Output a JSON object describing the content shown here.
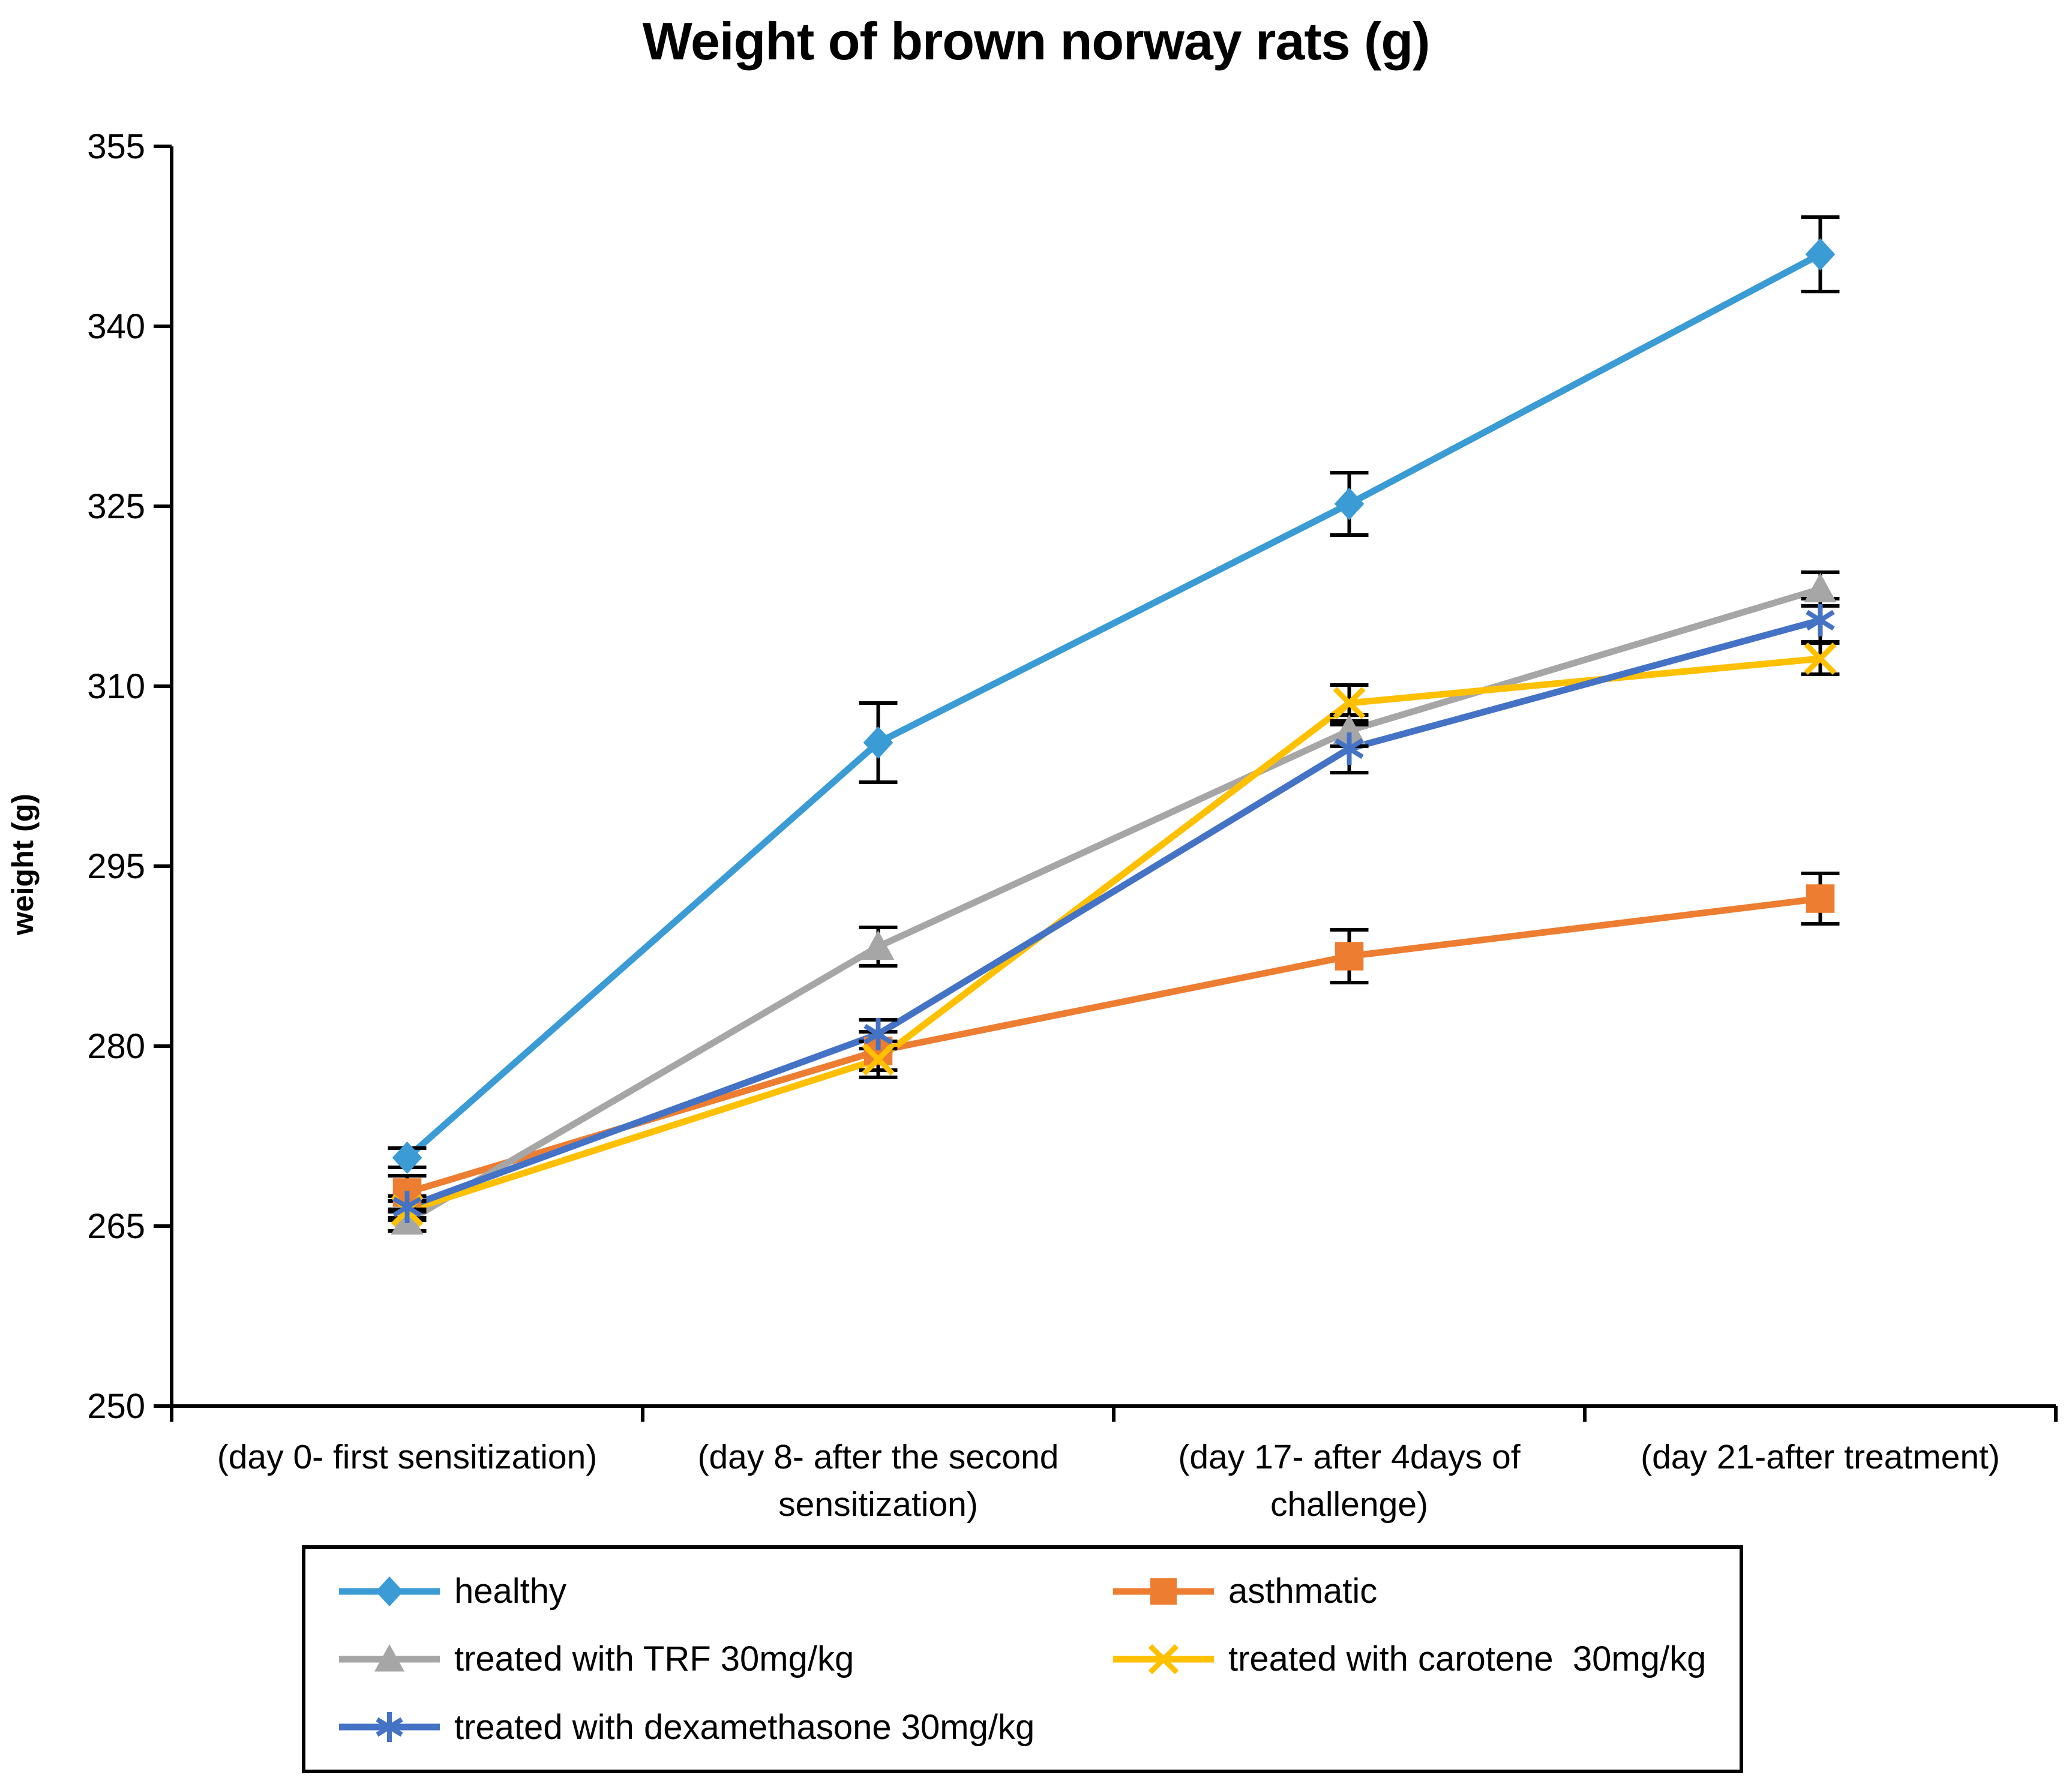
{
  "chart_data": {
    "type": "line",
    "title": "Weight of brown norway rats (g)",
    "ylabel": "weight (g)",
    "xlabel": "",
    "ylim": [
      250,
      355
    ],
    "yticks": [
      250,
      265,
      280,
      295,
      310,
      325,
      340,
      355
    ],
    "grid": false,
    "legend_position": "bottom",
    "error_bar_color": "#000000",
    "axis_color": "#000000",
    "categories": [
      "(day 0- first sensitization)",
      "(day 8- after the second sensitization)",
      "(day 17- after 4days of challenge)",
      "(day 21-after treatment)"
    ],
    "series": [
      {
        "name": "healthy",
        "color": "#3A9BD5",
        "marker": "diamond",
        "values": [
          270.7,
          305.3,
          325.2,
          346.0
        ],
        "errors": [
          0.8,
          3.3,
          2.6,
          3.1
        ]
      },
      {
        "name": "asthmatic",
        "color": "#ED7D31",
        "marker": "square",
        "values": [
          267.8,
          279.6,
          287.5,
          292.3
        ],
        "errors": [
          1.4,
          1.6,
          2.2,
          2.1
        ]
      },
      {
        "name": "treated with TRF 30mg/kg",
        "color": "#A6A6A6",
        "marker": "triangle",
        "values": [
          265.4,
          288.3,
          306.3,
          318.1
        ],
        "errors": [
          0.8,
          1.6,
          1.3,
          1.4
        ]
      },
      {
        "name": "treated with carotene  30mg/kg",
        "color": "#FFC000",
        "marker": "x",
        "values": [
          266.3,
          278.9,
          308.6,
          312.3
        ],
        "errors": [
          0.8,
          1.5,
          1.5,
          1.3
        ]
      },
      {
        "name": "treated with dexamethasone 30mg/kg",
        "color": "#4472C4",
        "marker": "asterisk",
        "values": [
          266.6,
          281.0,
          304.8,
          315.5
        ],
        "errors": [
          0.9,
          1.2,
          2.0,
          1.8
        ]
      }
    ]
  }
}
